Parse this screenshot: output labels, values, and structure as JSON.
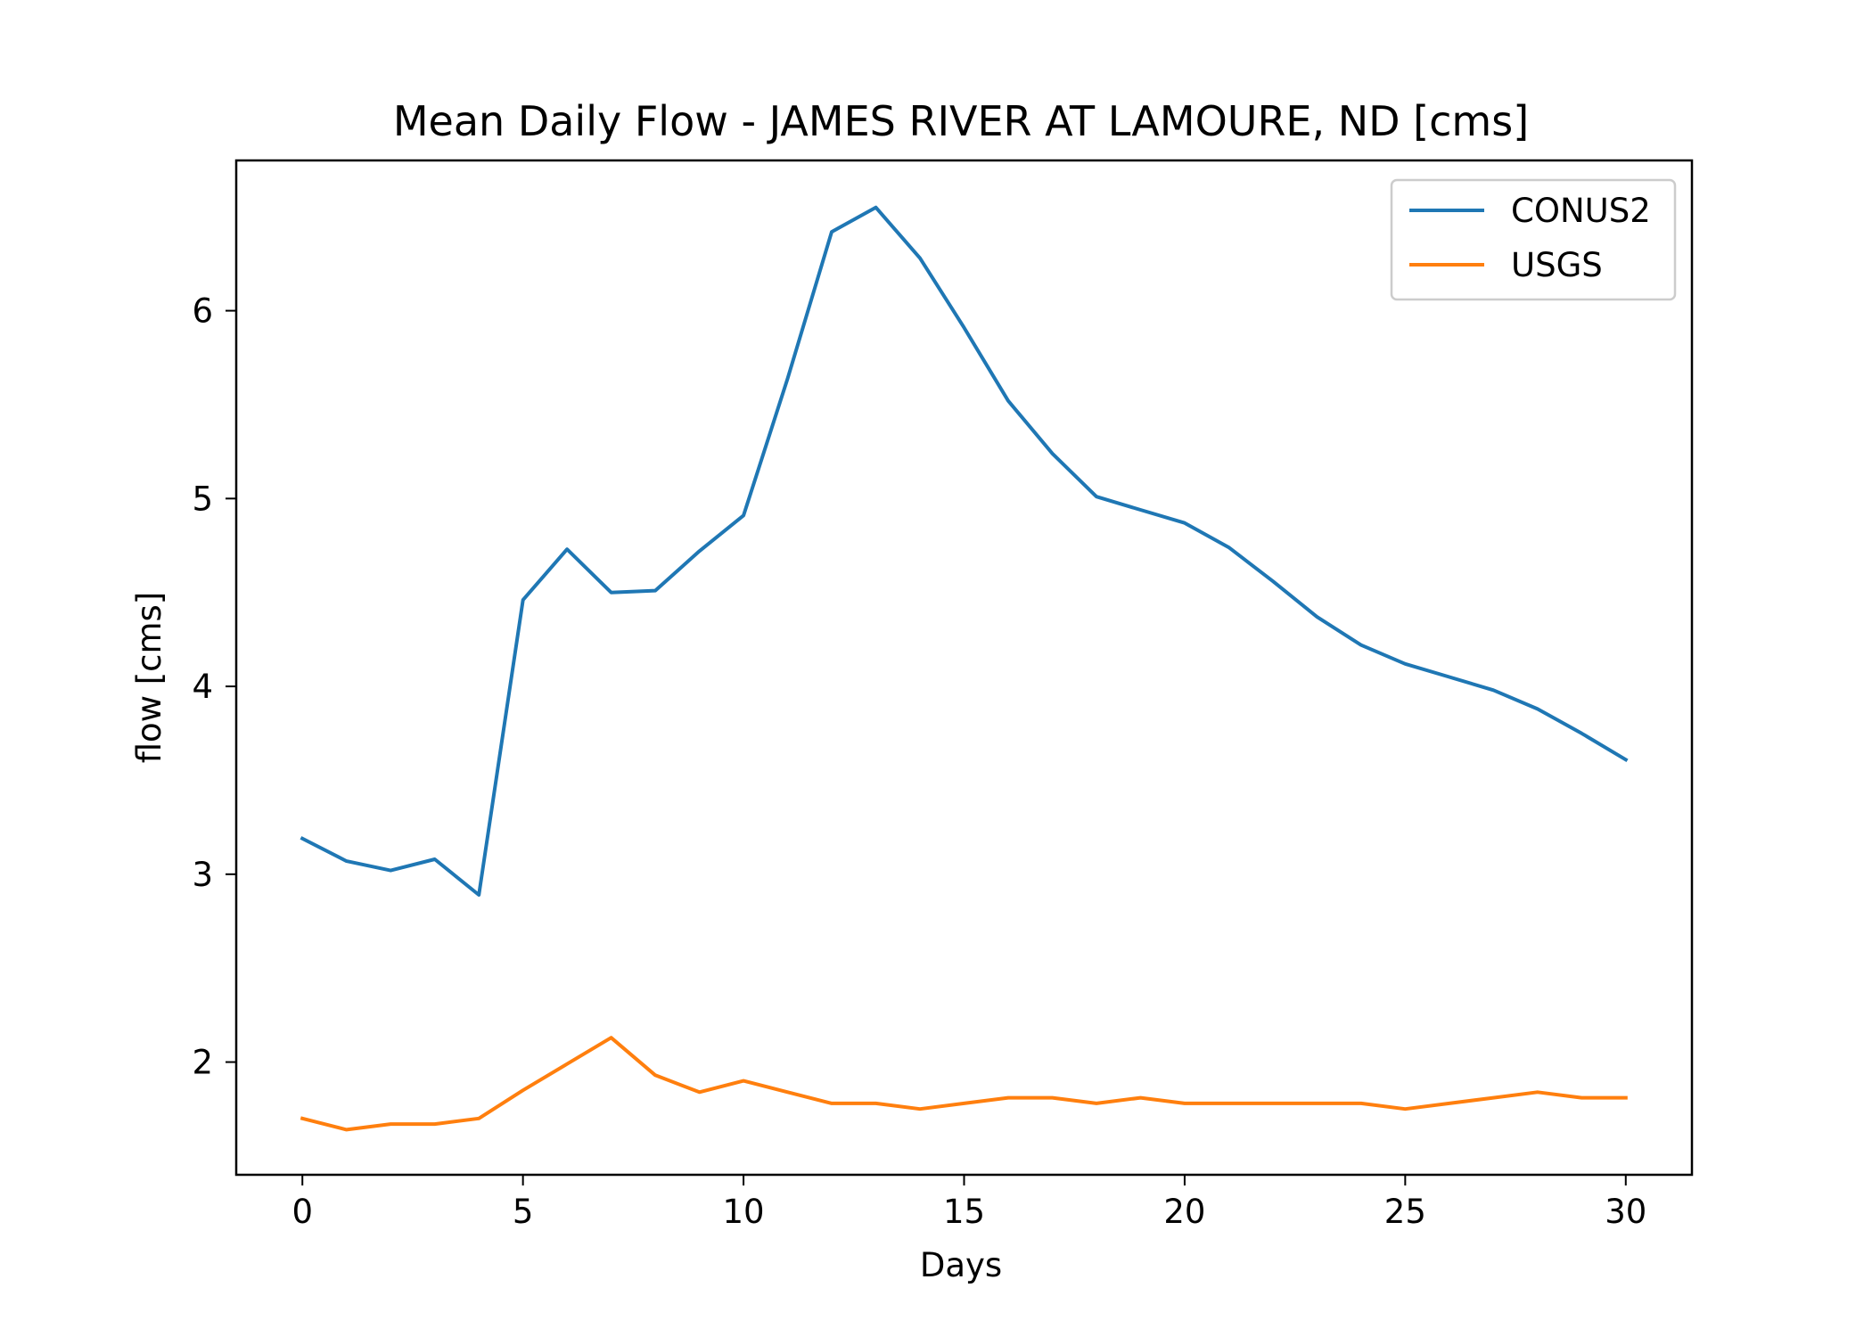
{
  "chart_data": {
    "type": "line",
    "title": "Mean Daily Flow - JAMES RIVER AT LAMOURE, ND [cms]",
    "xlabel": "Days",
    "ylabel": "flow [cms]",
    "xlim": [
      -1.5,
      31.5
    ],
    "ylim": [
      1.4,
      6.8
    ],
    "xticks": [
      0,
      5,
      10,
      15,
      20,
      25,
      30
    ],
    "yticks": [
      2,
      3,
      4,
      5,
      6
    ],
    "grid": false,
    "legend_position": "upper right",
    "x": [
      0,
      1,
      2,
      3,
      4,
      5,
      6,
      7,
      8,
      9,
      10,
      11,
      12,
      13,
      14,
      15,
      16,
      17,
      18,
      19,
      20,
      21,
      22,
      23,
      24,
      25,
      26,
      27,
      28,
      29,
      30
    ],
    "series": [
      {
        "name": "CONUS2",
        "color": "#1f77b4",
        "values": [
          3.19,
          3.07,
          3.02,
          3.08,
          2.89,
          4.46,
          4.73,
          4.5,
          4.51,
          4.72,
          4.91,
          5.64,
          6.42,
          6.55,
          6.28,
          5.91,
          5.52,
          5.24,
          5.01,
          4.94,
          4.87,
          4.74,
          4.56,
          4.37,
          4.22,
          4.12,
          4.05,
          3.98,
          3.88,
          3.75,
          3.61
        ]
      },
      {
        "name": "USGS",
        "color": "#ff7f0e",
        "values": [
          1.7,
          1.64,
          1.67,
          1.67,
          1.7,
          1.85,
          1.99,
          2.13,
          1.93,
          1.84,
          1.9,
          1.84,
          1.78,
          1.78,
          1.75,
          1.78,
          1.81,
          1.81,
          1.78,
          1.81,
          1.78,
          1.78,
          1.78,
          1.78,
          1.78,
          1.75,
          1.78,
          1.81,
          1.84,
          1.81,
          1.81
        ]
      }
    ]
  }
}
